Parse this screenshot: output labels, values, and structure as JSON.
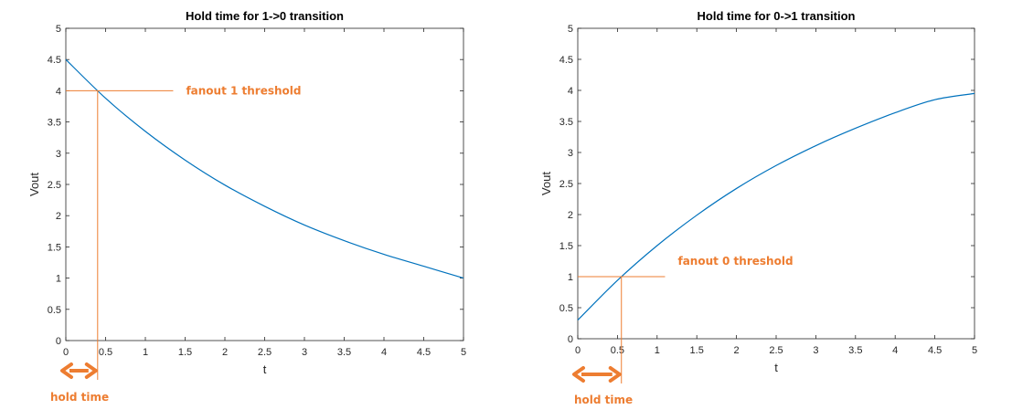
{
  "colors": {
    "curve": "#0072BD",
    "annotation": "#ED7D31",
    "axes": "#262626"
  },
  "chart_data": [
    {
      "type": "line",
      "title": "Hold time for 1->0 transition",
      "xlabel": "t",
      "ylabel": "Vout",
      "xlim": [
        0,
        5
      ],
      "ylim": [
        0,
        5
      ],
      "xticks": [
        "0",
        "0.5",
        "1",
        "1.5",
        "2",
        "2.5",
        "3",
        "3.5",
        "4",
        "4.5",
        "5"
      ],
      "yticks": [
        "0",
        "0.5",
        "1",
        "1.5",
        "2",
        "2.5",
        "3",
        "3.5",
        "4",
        "4.5",
        "5"
      ],
      "grid": false,
      "series": [
        {
          "x": [
            0,
            0.5,
            1,
            1.5,
            2,
            2.5,
            3,
            3.5,
            4,
            4.5,
            5
          ],
          "values": [
            4.5,
            3.88,
            3.35,
            2.89,
            2.49,
            2.15,
            1.85,
            1.6,
            1.38,
            1.19,
            1.0
          ]
        }
      ],
      "threshold": {
        "label": "fanout 1 threshold",
        "y": 4,
        "x_end": 1.35
      },
      "hold": {
        "label": "hold time",
        "x": 0.4
      }
    },
    {
      "type": "line",
      "title": "Hold time for 0->1 transition",
      "xlabel": "t",
      "ylabel": "Vout",
      "xlim": [
        0,
        5
      ],
      "ylim": [
        0,
        5
      ],
      "xticks": [
        "0",
        "0.5",
        "1",
        "1.5",
        "2",
        "2.5",
        "3",
        "3.5",
        "4",
        "4.5",
        "5"
      ],
      "yticks": [
        "0",
        "0.5",
        "1",
        "1.5",
        "2",
        "2.5",
        "3",
        "3.5",
        "4",
        "4.5",
        "5"
      ],
      "grid": false,
      "series": [
        {
          "x": [
            0,
            0.5,
            1,
            1.5,
            2,
            2.5,
            3,
            3.5,
            4,
            4.5,
            5
          ],
          "values": [
            0.3,
            0.94,
            1.5,
            1.99,
            2.42,
            2.79,
            3.11,
            3.39,
            3.64,
            3.85,
            3.95
          ]
        }
      ],
      "threshold": {
        "label": "fanout 0 threshold",
        "y": 1,
        "x_end": 1.1
      },
      "hold": {
        "label": "hold time",
        "x": 0.55
      }
    }
  ]
}
